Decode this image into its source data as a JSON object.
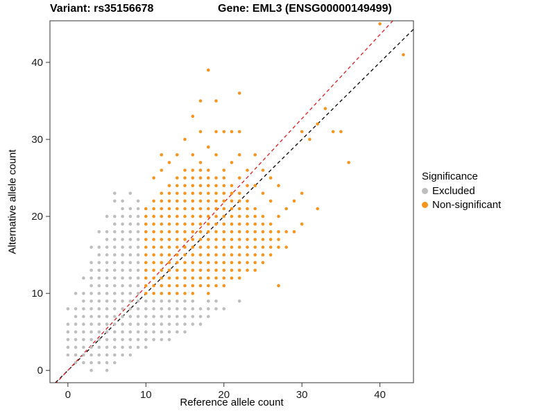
{
  "titles": {
    "variant": "Variant: rs35156678",
    "gene": "Gene: EML3 (ENSG00000149499)"
  },
  "chart_data": {
    "type": "scatter",
    "xlabel": "Reference allele count",
    "ylabel": "Alternative allele count",
    "xlim": [
      -2.3,
      44.3
    ],
    "ylim": [
      -1.6,
      45.4
    ],
    "xticks": [
      0,
      10,
      20,
      30,
      40
    ],
    "yticks": [
      0,
      10,
      20,
      30,
      40
    ],
    "grid": "off",
    "panel_border_color": "#333333",
    "legend": {
      "title": "Significance",
      "position": "right",
      "entries": [
        {
          "label": "Excluded",
          "color": "#BEBEBE"
        },
        {
          "label": "Non-significant",
          "color": "#F7941D"
        }
      ]
    },
    "lines": [
      {
        "name": "identity",
        "slope": 1.0,
        "intercept": 0,
        "color": "#000000",
        "dash": "5 4"
      },
      {
        "name": "fit",
        "slope": 1.09,
        "intercept": 0,
        "color": "#E31A1C",
        "dash": "5 4"
      }
    ],
    "series": [
      {
        "name": "Excluded",
        "color": "#BEBEBE",
        "columns": [
          [
            0,
            [
              2,
              3,
              4,
              5,
              6,
              8
            ]
          ],
          [
            1,
            [
              1,
              2,
              3,
              4,
              5,
              6,
              7,
              8,
              10
            ]
          ],
          [
            2,
            [
              1,
              2,
              3,
              4,
              5,
              6,
              7,
              8,
              9,
              10,
              12
            ]
          ],
          [
            3,
            [
              0,
              1,
              2,
              3,
              4,
              5,
              6,
              7,
              8,
              9,
              10,
              11,
              12,
              13,
              14,
              16
            ]
          ],
          [
            4,
            [
              1,
              2,
              3,
              4,
              5,
              6,
              7,
              8,
              9,
              10,
              11,
              12,
              13,
              14,
              15,
              16,
              18
            ]
          ],
          [
            5,
            [
              0,
              1,
              2,
              3,
              4,
              5,
              6,
              7,
              8,
              9,
              10,
              11,
              12,
              13,
              14,
              15,
              16,
              17,
              18,
              20
            ]
          ],
          [
            6,
            [
              1,
              2,
              3,
              4,
              5,
              6,
              7,
              8,
              9,
              10,
              11,
              12,
              13,
              14,
              15,
              16,
              17,
              18,
              19,
              20,
              22,
              23
            ]
          ],
          [
            7,
            [
              2,
              3,
              4,
              5,
              6,
              7,
              8,
              9,
              10,
              11,
              12,
              13,
              14,
              15,
              16,
              17,
              18,
              19,
              20,
              21,
              22
            ]
          ],
          [
            8,
            [
              2,
              3,
              4,
              5,
              6,
              7,
              8,
              9,
              10,
              11,
              12,
              13,
              14,
              15,
              16,
              17,
              18,
              19,
              20,
              21,
              23
            ]
          ],
          [
            9,
            [
              3,
              4,
              5,
              6,
              7,
              8,
              9,
              10,
              11,
              12,
              13,
              14,
              15,
              16,
              17,
              18,
              19,
              20,
              21,
              22
            ]
          ],
          [
            10,
            [
              3,
              4,
              5,
              6,
              7,
              8,
              9
            ]
          ],
          [
            11,
            [
              4,
              5,
              6,
              7,
              8,
              9
            ]
          ],
          [
            12,
            [
              4,
              5,
              6,
              7,
              8,
              9
            ]
          ],
          [
            13,
            [
              4,
              5,
              6,
              7,
              8,
              9
            ]
          ],
          [
            14,
            [
              5,
              6,
              7,
              8,
              9
            ]
          ],
          [
            15,
            [
              5,
              6,
              7,
              8,
              9
            ]
          ],
          [
            16,
            [
              6,
              7,
              8,
              9
            ]
          ],
          [
            17,
            [
              6,
              7,
              8
            ]
          ],
          [
            18,
            [
              7,
              8,
              9
            ]
          ],
          [
            19,
            [
              8,
              9
            ]
          ],
          [
            20,
            [
              8
            ]
          ],
          [
            22,
            [
              9
            ]
          ]
        ]
      },
      {
        "name": "Non-significant",
        "color": "#F7941D",
        "columns": [
          [
            10,
            [
              10,
              11,
              12,
              13,
              14,
              15,
              16,
              17,
              18,
              19,
              20,
              21
            ]
          ],
          [
            11,
            [
              10,
              11,
              12,
              13,
              14,
              15,
              16,
              17,
              18,
              19,
              20,
              21,
              22,
              25
            ]
          ],
          [
            12,
            [
              10,
              11,
              12,
              13,
              14,
              15,
              16,
              17,
              18,
              19,
              20,
              21,
              22,
              23,
              26,
              28
            ]
          ],
          [
            13,
            [
              10,
              11,
              12,
              13,
              14,
              15,
              16,
              17,
              18,
              19,
              20,
              21,
              22,
              23,
              24,
              27
            ]
          ],
          [
            14,
            [
              10,
              11,
              12,
              13,
              14,
              15,
              16,
              17,
              18,
              19,
              20,
              21,
              22,
              23,
              24,
              25,
              28
            ]
          ],
          [
            15,
            [
              10,
              11,
              12,
              13,
              14,
              15,
              16,
              17,
              18,
              19,
              20,
              21,
              22,
              23,
              24,
              25,
              26,
              30
            ]
          ],
          [
            16,
            [
              10,
              11,
              12,
              13,
              14,
              15,
              16,
              17,
              18,
              19,
              20,
              21,
              22,
              23,
              24,
              25,
              26,
              28,
              33
            ]
          ],
          [
            17,
            [
              11,
              12,
              13,
              14,
              15,
              16,
              17,
              18,
              19,
              20,
              21,
              22,
              23,
              24,
              25,
              26,
              27,
              31,
              35
            ]
          ],
          [
            18,
            [
              10,
              11,
              12,
              13,
              14,
              15,
              16,
              17,
              18,
              19,
              20,
              21,
              22,
              23,
              24,
              25,
              26,
              29,
              39
            ]
          ],
          [
            19,
            [
              11,
              12,
              13,
              14,
              15,
              16,
              17,
              18,
              19,
              20,
              21,
              22,
              23,
              24,
              25,
              28,
              31,
              35
            ]
          ],
          [
            20,
            [
              11,
              12,
              13,
              14,
              15,
              16,
              17,
              18,
              19,
              20,
              21,
              22,
              23,
              24,
              25,
              26,
              31
            ]
          ],
          [
            21,
            [
              12,
              13,
              14,
              15,
              16,
              17,
              18,
              19,
              20,
              21,
              22,
              23,
              24,
              27,
              31
            ]
          ],
          [
            22,
            [
              12,
              13,
              14,
              15,
              16,
              17,
              18,
              19,
              20,
              21,
              22,
              23,
              25,
              28,
              31,
              36
            ]
          ],
          [
            23,
            [
              13,
              14,
              15,
              16,
              17,
              18,
              19,
              20,
              21,
              22,
              24,
              26
            ]
          ],
          [
            24,
            [
              13,
              14,
              15,
              16,
              17,
              18,
              19,
              20,
              21,
              24,
              28
            ]
          ],
          [
            25,
            [
              14,
              15,
              16,
              17,
              18,
              19,
              20,
              23,
              26
            ]
          ],
          [
            26,
            [
              15,
              16,
              17,
              18,
              19,
              22,
              25
            ]
          ],
          [
            27,
            [
              11,
              16,
              17,
              18,
              20,
              24
            ]
          ],
          [
            28,
            [
              16,
              18,
              21
            ]
          ],
          [
            29,
            [
              18,
              22
            ]
          ],
          [
            30,
            [
              19,
              23,
              31
            ]
          ],
          [
            31,
            [
              30
            ]
          ],
          [
            32,
            [
              21,
              32
            ]
          ],
          [
            33,
            [
              34
            ]
          ],
          [
            34,
            [
              31
            ]
          ],
          [
            35,
            [
              31
            ]
          ],
          [
            36,
            [
              27
            ]
          ],
          [
            40,
            [
              45
            ]
          ],
          [
            43,
            [
              41
            ]
          ]
        ]
      }
    ]
  }
}
